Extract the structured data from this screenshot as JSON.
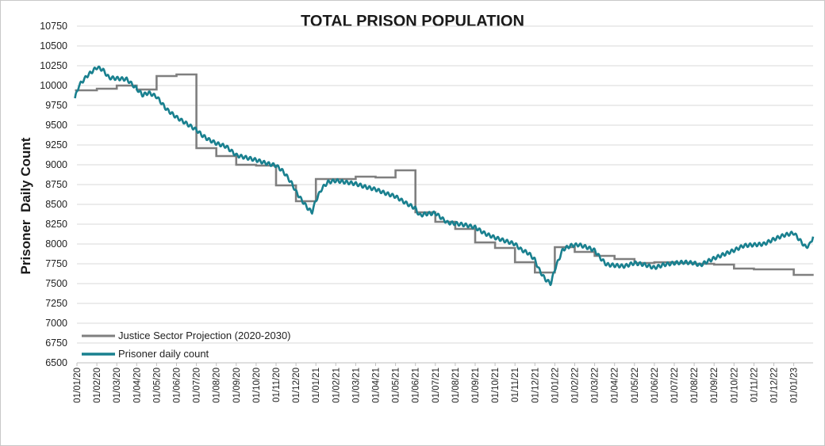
{
  "chart_data": {
    "type": "line",
    "title": "TOTAL PRISON POPULATION",
    "xlabel": "",
    "ylabel": "Prisoner  Daily Count",
    "ylim": [
      6500,
      10750
    ],
    "yticks": [
      6500,
      6750,
      7000,
      7250,
      7500,
      7750,
      8000,
      8250,
      8500,
      8750,
      9000,
      9250,
      9500,
      9750,
      10000,
      10250,
      10500,
      10750
    ],
    "x_tick_labels": [
      "01/01/20",
      "01/02/20",
      "01/03/20",
      "01/04/20",
      "01/05/20",
      "01/06/20",
      "01/07/20",
      "01/08/20",
      "01/09/20",
      "01/10/20",
      "01/11/20",
      "01/12/20",
      "01/01/21",
      "01/02/21",
      "01/03/21",
      "01/04/21",
      "01/05/21",
      "01/06/21",
      "01/07/21",
      "01/08/21",
      "01/09/21",
      "01/10/21",
      "01/11/21",
      "01/12/21",
      "01/01/22",
      "01/02/22",
      "01/03/22",
      "01/04/22",
      "01/05/22",
      "01/06/22",
      "01/07/22",
      "01/08/22",
      "01/09/22",
      "01/10/22",
      "01/11/22",
      "01/12/22",
      "01/01/23"
    ],
    "x_unit": "months since 01/01/20",
    "grid": true,
    "legend_position": "bottom-left",
    "series": [
      {
        "name": "Justice Sector Projection (2020-2030)",
        "color": "#7f7f7f",
        "style": "step",
        "points": [
          [
            -0.1,
            9940
          ],
          [
            1.0,
            9940
          ],
          [
            1.0,
            9960
          ],
          [
            2.0,
            9960
          ],
          [
            2.0,
            10000
          ],
          [
            3.0,
            10000
          ],
          [
            3.0,
            9950
          ],
          [
            4.0,
            9950
          ],
          [
            4.0,
            10120
          ],
          [
            5.0,
            10120
          ],
          [
            5.0,
            10140
          ],
          [
            6.0,
            10140
          ],
          [
            6.0,
            9210
          ],
          [
            7.0,
            9210
          ],
          [
            7.0,
            9110
          ],
          [
            8.0,
            9110
          ],
          [
            8.0,
            9000
          ],
          [
            9.0,
            9000
          ],
          [
            9.0,
            8990
          ],
          [
            10.0,
            8990
          ],
          [
            10.0,
            8740
          ],
          [
            11.0,
            8740
          ],
          [
            11.0,
            8540
          ],
          [
            12.0,
            8540
          ],
          [
            12.0,
            8820
          ],
          [
            13.0,
            8820
          ],
          [
            13.0,
            8820
          ],
          [
            14.0,
            8820
          ],
          [
            14.0,
            8850
          ],
          [
            15.0,
            8850
          ],
          [
            15.0,
            8840
          ],
          [
            16.0,
            8840
          ],
          [
            16.0,
            8930
          ],
          [
            17.0,
            8930
          ],
          [
            17.0,
            8400
          ],
          [
            18.0,
            8400
          ],
          [
            18.0,
            8280
          ],
          [
            19.0,
            8280
          ],
          [
            19.0,
            8190
          ],
          [
            20.0,
            8190
          ],
          [
            20.0,
            8020
          ],
          [
            21.0,
            8020
          ],
          [
            21.0,
            7950
          ],
          [
            22.0,
            7950
          ],
          [
            22.0,
            7770
          ],
          [
            23.0,
            7770
          ],
          [
            23.0,
            7640
          ],
          [
            24.0,
            7640
          ],
          [
            24.0,
            7960
          ],
          [
            25.0,
            7960
          ],
          [
            25.0,
            7900
          ],
          [
            26.0,
            7900
          ],
          [
            26.0,
            7850
          ],
          [
            27.0,
            7850
          ],
          [
            27.0,
            7810
          ],
          [
            28.0,
            7810
          ],
          [
            28.0,
            7760
          ],
          [
            29.0,
            7760
          ],
          [
            29.0,
            7770
          ],
          [
            30.0,
            7770
          ],
          [
            30.0,
            7760
          ],
          [
            31.0,
            7760
          ],
          [
            31.0,
            7750
          ],
          [
            32.0,
            7750
          ],
          [
            32.0,
            7740
          ],
          [
            33.0,
            7740
          ],
          [
            33.0,
            7690
          ],
          [
            34.0,
            7690
          ],
          [
            34.0,
            7680
          ],
          [
            35.0,
            7680
          ],
          [
            35.0,
            7680
          ],
          [
            36.0,
            7680
          ],
          [
            36.0,
            7610
          ],
          [
            37.0,
            7610
          ]
        ]
      },
      {
        "name": "Prisoner daily count",
        "color": "#19808f",
        "style": "line",
        "anchors": [
          [
            -0.1,
            9840
          ],
          [
            0.1,
            10000
          ],
          [
            0.5,
            10120
          ],
          [
            1.0,
            10230
          ],
          [
            1.3,
            10200
          ],
          [
            1.6,
            10100
          ],
          [
            2.0,
            10090
          ],
          [
            2.5,
            10080
          ],
          [
            3.0,
            9960
          ],
          [
            3.3,
            9880
          ],
          [
            3.6,
            9910
          ],
          [
            4.0,
            9860
          ],
          [
            4.5,
            9700
          ],
          [
            5.0,
            9600
          ],
          [
            5.5,
            9520
          ],
          [
            6.0,
            9440
          ],
          [
            6.3,
            9370
          ],
          [
            6.6,
            9320
          ],
          [
            7.0,
            9270
          ],
          [
            7.5,
            9230
          ],
          [
            8.0,
            9120
          ],
          [
            8.5,
            9090
          ],
          [
            9.0,
            9060
          ],
          [
            9.5,
            9020
          ],
          [
            10.0,
            8990
          ],
          [
            10.3,
            8930
          ],
          [
            10.5,
            8870
          ],
          [
            10.8,
            8760
          ],
          [
            11.0,
            8660
          ],
          [
            11.3,
            8550
          ],
          [
            11.6,
            8450
          ],
          [
            11.8,
            8400
          ],
          [
            12.0,
            8550
          ],
          [
            12.3,
            8700
          ],
          [
            12.6,
            8780
          ],
          [
            13.0,
            8800
          ],
          [
            13.5,
            8780
          ],
          [
            14.0,
            8760
          ],
          [
            14.5,
            8720
          ],
          [
            15.0,
            8690
          ],
          [
            15.5,
            8640
          ],
          [
            16.0,
            8600
          ],
          [
            16.5,
            8520
          ],
          [
            17.0,
            8450
          ],
          [
            17.2,
            8360
          ],
          [
            17.5,
            8380
          ],
          [
            18.0,
            8390
          ],
          [
            18.3,
            8330
          ],
          [
            18.6,
            8270
          ],
          [
            19.0,
            8260
          ],
          [
            19.5,
            8240
          ],
          [
            20.0,
            8210
          ],
          [
            20.5,
            8130
          ],
          [
            21.0,
            8080
          ],
          [
            21.5,
            8040
          ],
          [
            22.0,
            8000
          ],
          [
            22.3,
            7930
          ],
          [
            22.7,
            7880
          ],
          [
            23.0,
            7800
          ],
          [
            23.2,
            7680
          ],
          [
            23.5,
            7560
          ],
          [
            23.8,
            7500
          ],
          [
            24.0,
            7680
          ],
          [
            24.4,
            7930
          ],
          [
            24.8,
            7980
          ],
          [
            25.2,
            7990
          ],
          [
            25.6,
            7960
          ],
          [
            26.0,
            7920
          ],
          [
            26.3,
            7820
          ],
          [
            26.6,
            7740
          ],
          [
            27.0,
            7730
          ],
          [
            27.5,
            7720
          ],
          [
            28.0,
            7760
          ],
          [
            28.5,
            7740
          ],
          [
            29.0,
            7700
          ],
          [
            29.5,
            7740
          ],
          [
            30.0,
            7760
          ],
          [
            30.5,
            7770
          ],
          [
            31.0,
            7760
          ],
          [
            31.3,
            7730
          ],
          [
            31.5,
            7760
          ],
          [
            32.0,
            7820
          ],
          [
            32.5,
            7870
          ],
          [
            33.0,
            7920
          ],
          [
            33.5,
            7980
          ],
          [
            34.0,
            7990
          ],
          [
            34.5,
            8000
          ],
          [
            35.0,
            8060
          ],
          [
            35.5,
            8110
          ],
          [
            36.0,
            8140
          ],
          [
            36.3,
            8050
          ],
          [
            36.6,
            7960
          ],
          [
            36.8,
            7990
          ],
          [
            37.0,
            8110
          ]
        ],
        "weekly_oscillation_amplitude": 22
      }
    ]
  }
}
